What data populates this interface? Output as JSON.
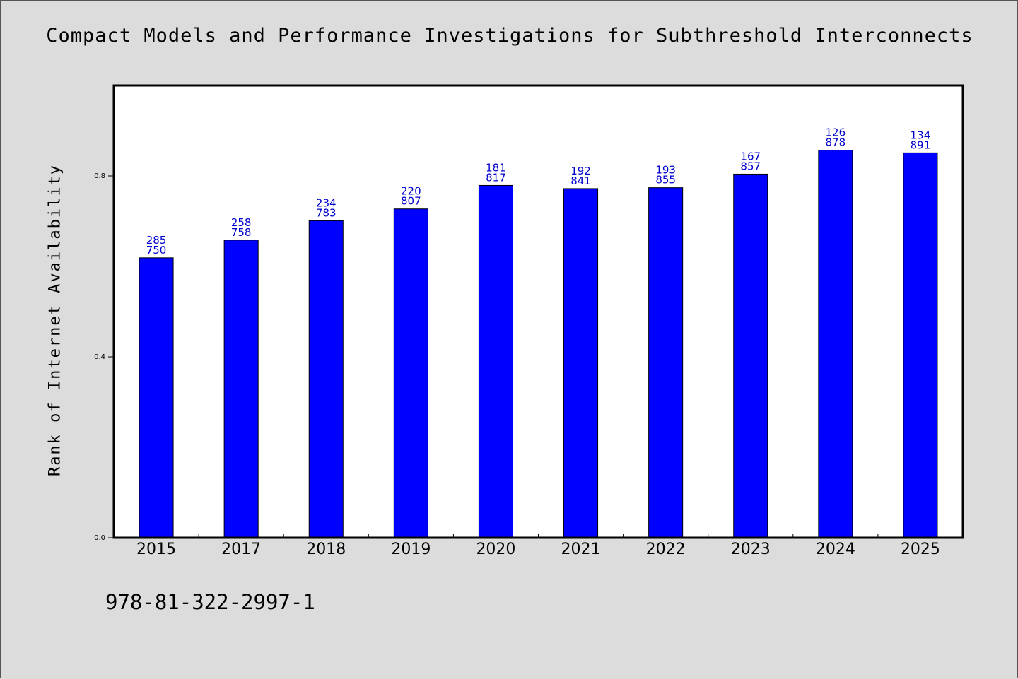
{
  "chart_data": {
    "type": "bar",
    "title": "Compact Models and Performance Investigations for Subthreshold Interconnects",
    "xlabel": "",
    "ylabel": "Rank of Internet Availability",
    "ylim": [
      0,
      1.0
    ],
    "yticks": [
      "0.0",
      "0.4",
      "0.8"
    ],
    "categories": [
      "2015",
      "2017",
      "2018",
      "2019",
      "2020",
      "2021",
      "2022",
      "2023",
      "2024",
      "2025"
    ],
    "values": [
      0.619,
      0.658,
      0.701,
      0.727,
      0.779,
      0.772,
      0.774,
      0.804,
      0.857,
      0.851
    ],
    "bar_labels": [
      [
        "285",
        "750"
      ],
      [
        "258",
        "758"
      ],
      [
        "234",
        "783"
      ],
      [
        "220",
        "807"
      ],
      [
        "181",
        "817"
      ],
      [
        "192",
        "841"
      ],
      [
        "193",
        "855"
      ],
      [
        "167",
        "857"
      ],
      [
        "126",
        "878"
      ],
      [
        "134",
        "891"
      ]
    ],
    "grid": false,
    "colors": {
      "bar": "#0000ff",
      "label": "#0000cc",
      "plot_bg": "#ffffff"
    }
  },
  "footer": {
    "isbn": "978-81-322-2997-1"
  }
}
